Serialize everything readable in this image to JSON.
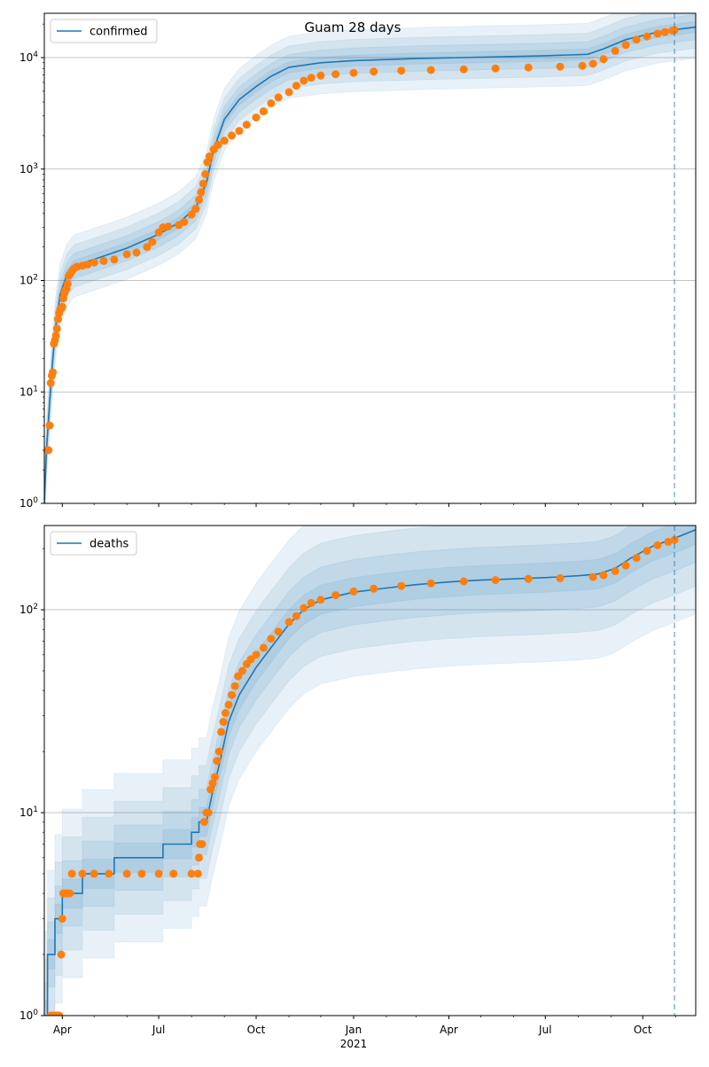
{
  "figure": {
    "suptitle": "Guam 28 days"
  },
  "x_axis": {
    "start": "2020-03-15",
    "end": "2021-11-20",
    "forecast_date": "2021-10-31",
    "tick_labels": [
      {
        "date": "2020-04-01",
        "label": "Apr"
      },
      {
        "date": "2020-07-01",
        "label": "Jul"
      },
      {
        "date": "2020-10-01",
        "label": "Oct"
      },
      {
        "date": "2021-01-01",
        "label": "Jan"
      },
      {
        "date": "2021-04-01",
        "label": "Apr"
      },
      {
        "date": "2021-07-01",
        "label": "Jul"
      },
      {
        "date": "2021-10-01",
        "label": "Oct"
      }
    ],
    "year_label": {
      "date": "2021-01-01",
      "label": "2021"
    }
  },
  "colors": {
    "line": "#1f77b4",
    "observed": "#ff7f0e",
    "band": "#1f77b4",
    "grid": "#b0b0b0"
  },
  "chart_data": [
    {
      "type": "line",
      "yscale": "log",
      "ylim": [
        1,
        25000
      ],
      "y_tick_labels": [
        "10^0",
        "10^1",
        "10^2",
        "10^3",
        "10^4"
      ],
      "grid": true,
      "legend_position": "top-left",
      "series": [
        {
          "name": "confirmed",
          "kind": "model",
          "points": [
            [
              "2020-03-15",
              1
            ],
            [
              "2020-03-17",
              3
            ],
            [
              "2020-03-20",
              8
            ],
            [
              "2020-03-23",
              20
            ],
            [
              "2020-03-26",
              40
            ],
            [
              "2020-03-30",
              75
            ],
            [
              "2020-04-05",
              110
            ],
            [
              "2020-04-12",
              135
            ],
            [
              "2020-05-01",
              155
            ],
            [
              "2020-06-01",
              195
            ],
            [
              "2020-07-01",
              260
            ],
            [
              "2020-07-20",
              330
            ],
            [
              "2020-08-05",
              450
            ],
            [
              "2020-08-15",
              750
            ],
            [
              "2020-08-22",
              1500
            ],
            [
              "2020-09-01",
              2800
            ],
            [
              "2020-09-15",
              4200
            ],
            [
              "2020-10-01",
              5500
            ],
            [
              "2020-10-15",
              6800
            ],
            [
              "2020-11-01",
              8200
            ],
            [
              "2020-12-01",
              9000
            ],
            [
              "2021-01-01",
              9400
            ],
            [
              "2021-03-01",
              9800
            ],
            [
              "2021-05-01",
              10100
            ],
            [
              "2021-07-01",
              10400
            ],
            [
              "2021-08-10",
              10700
            ],
            [
              "2021-08-25",
              12000
            ],
            [
              "2021-09-15",
              14500
            ],
            [
              "2021-10-15",
              17000
            ],
            [
              "2021-10-31",
              17800
            ],
            [
              "2021-11-20",
              18800
            ]
          ]
        },
        {
          "name": "",
          "kind": "observed",
          "points": [
            [
              "2020-03-18",
              3
            ],
            [
              "2020-03-19",
              3
            ],
            [
              "2020-03-20",
              5
            ],
            [
              "2020-03-21",
              12
            ],
            [
              "2020-03-22",
              14
            ],
            [
              "2020-03-23",
              15
            ],
            [
              "2020-03-24",
              27
            ],
            [
              "2020-03-25",
              29
            ],
            [
              "2020-03-26",
              32
            ],
            [
              "2020-03-27",
              37
            ],
            [
              "2020-03-28",
              45
            ],
            [
              "2020-03-29",
              51
            ],
            [
              "2020-03-30",
              55
            ],
            [
              "2020-03-31",
              56
            ],
            [
              "2020-04-01",
              58
            ],
            [
              "2020-04-02",
              69
            ],
            [
              "2020-04-03",
              77
            ],
            [
              "2020-04-04",
              82
            ],
            [
              "2020-04-05",
              84
            ],
            [
              "2020-04-06",
              93
            ],
            [
              "2020-04-07",
              110
            ],
            [
              "2020-04-08",
              113
            ],
            [
              "2020-04-10",
              121
            ],
            [
              "2020-04-12",
              128
            ],
            [
              "2020-04-15",
              133
            ],
            [
              "2020-04-20",
              136
            ],
            [
              "2020-04-25",
              139
            ],
            [
              "2020-05-01",
              145
            ],
            [
              "2020-05-10",
              150
            ],
            [
              "2020-05-20",
              154
            ],
            [
              "2020-06-01",
              172
            ],
            [
              "2020-06-10",
              178
            ],
            [
              "2020-06-20",
              200
            ],
            [
              "2020-06-25",
              222
            ],
            [
              "2020-07-01",
              270
            ],
            [
              "2020-07-05",
              300
            ],
            [
              "2020-07-10",
              305
            ],
            [
              "2020-07-20",
              315
            ],
            [
              "2020-07-25",
              335
            ],
            [
              "2020-08-01",
              390
            ],
            [
              "2020-08-05",
              440
            ],
            [
              "2020-08-08",
              530
            ],
            [
              "2020-08-10",
              620
            ],
            [
              "2020-08-12",
              740
            ],
            [
              "2020-08-14",
              900
            ],
            [
              "2020-08-16",
              1150
            ],
            [
              "2020-08-18",
              1300
            ],
            [
              "2020-08-22",
              1500
            ],
            [
              "2020-08-26",
              1650
            ],
            [
              "2020-09-01",
              1800
            ],
            [
              "2020-09-08",
              2000
            ],
            [
              "2020-09-15",
              2200
            ],
            [
              "2020-09-22",
              2500
            ],
            [
              "2020-10-01",
              2900
            ],
            [
              "2020-10-08",
              3300
            ],
            [
              "2020-10-15",
              3900
            ],
            [
              "2020-10-22",
              4400
            ],
            [
              "2020-11-01",
              4900
            ],
            [
              "2020-11-08",
              5600
            ],
            [
              "2020-11-15",
              6200
            ],
            [
              "2020-11-22",
              6600
            ],
            [
              "2020-12-01",
              6900
            ],
            [
              "2020-12-15",
              7100
            ],
            [
              "2021-01-01",
              7300
            ],
            [
              "2021-01-20",
              7500
            ],
            [
              "2021-02-15",
              7650
            ],
            [
              "2021-03-15",
              7750
            ],
            [
              "2021-04-15",
              7850
            ],
            [
              "2021-05-15",
              8000
            ],
            [
              "2021-06-15",
              8150
            ],
            [
              "2021-07-15",
              8300
            ],
            [
              "2021-08-05",
              8450
            ],
            [
              "2021-08-15",
              8800
            ],
            [
              "2021-08-25",
              9700
            ],
            [
              "2021-09-05",
              11500
            ],
            [
              "2021-09-15",
              13000
            ],
            [
              "2021-09-25",
              14500
            ],
            [
              "2021-10-05",
              15500
            ],
            [
              "2021-10-15",
              16400
            ],
            [
              "2021-10-22",
              17000
            ],
            [
              "2021-10-29",
              17500
            ],
            [
              "2021-10-31",
              17700
            ]
          ]
        }
      ]
    },
    {
      "type": "line",
      "yscale": "log",
      "ylim": [
        1,
        260
      ],
      "y_tick_labels": [
        "10^0",
        "10^1",
        "10^2"
      ],
      "grid": true,
      "legend_position": "top-left",
      "series": [
        {
          "name": "deaths",
          "kind": "model",
          "step": true,
          "points": [
            [
              "2020-03-15",
              1
            ],
            [
              "2020-03-18",
              1
            ],
            [
              "2020-03-18",
              2
            ],
            [
              "2020-03-25",
              2
            ],
            [
              "2020-03-25",
              3
            ],
            [
              "2020-04-01",
              3
            ],
            [
              "2020-04-01",
              4
            ],
            [
              "2020-04-20",
              4
            ],
            [
              "2020-04-20",
              5
            ],
            [
              "2020-05-20",
              5
            ],
            [
              "2020-05-20",
              6
            ],
            [
              "2020-07-05",
              6
            ],
            [
              "2020-07-05",
              7
            ],
            [
              "2020-08-01",
              7
            ],
            [
              "2020-08-01",
              8
            ],
            [
              "2020-08-08",
              8
            ],
            [
              "2020-08-08",
              9
            ],
            [
              "2020-08-15",
              9
            ],
            [
              "2020-08-20",
              12
            ],
            [
              "2020-08-28",
              18
            ],
            [
              "2020-09-05",
              28
            ],
            [
              "2020-09-15",
              38
            ],
            [
              "2020-10-01",
              52
            ],
            [
              "2020-10-15",
              65
            ],
            [
              "2020-11-01",
              85
            ],
            [
              "2020-11-15",
              100
            ],
            [
              "2020-12-01",
              112
            ],
            [
              "2021-01-01",
              122
            ],
            [
              "2021-02-01",
              128
            ],
            [
              "2021-03-01",
              133
            ],
            [
              "2021-04-01",
              137
            ],
            [
              "2021-05-01",
              140
            ],
            [
              "2021-06-01",
              142
            ],
            [
              "2021-07-01",
              144
            ],
            [
              "2021-08-01",
              147
            ],
            [
              "2021-08-20",
              150
            ],
            [
              "2021-09-05",
              160
            ],
            [
              "2021-09-20",
              180
            ],
            [
              "2021-10-10",
              205
            ],
            [
              "2021-10-31",
              225
            ],
            [
              "2021-11-20",
              248
            ]
          ]
        },
        {
          "name": "",
          "kind": "observed",
          "points": [
            [
              "2020-03-21",
              1
            ],
            [
              "2020-03-23",
              1
            ],
            [
              "2020-03-25",
              1
            ],
            [
              "2020-03-27",
              1
            ],
            [
              "2020-03-29",
              1
            ],
            [
              "2020-03-31",
              2
            ],
            [
              "2020-04-01",
              3
            ],
            [
              "2020-04-02",
              4
            ],
            [
              "2020-04-04",
              4
            ],
            [
              "2020-04-06",
              4
            ],
            [
              "2020-04-08",
              4
            ],
            [
              "2020-04-10",
              5
            ],
            [
              "2020-04-20",
              5
            ],
            [
              "2020-05-01",
              5
            ],
            [
              "2020-05-15",
              5
            ],
            [
              "2020-06-01",
              5
            ],
            [
              "2020-06-15",
              5
            ],
            [
              "2020-07-01",
              5
            ],
            [
              "2020-07-15",
              5
            ],
            [
              "2020-08-01",
              5
            ],
            [
              "2020-08-07",
              5
            ],
            [
              "2020-08-08",
              6
            ],
            [
              "2020-08-09",
              7
            ],
            [
              "2020-08-11",
              7
            ],
            [
              "2020-08-13",
              9
            ],
            [
              "2020-08-15",
              10
            ],
            [
              "2020-08-17",
              10
            ],
            [
              "2020-08-19",
              13
            ],
            [
              "2020-08-21",
              14
            ],
            [
              "2020-08-23",
              15
            ],
            [
              "2020-08-25",
              18
            ],
            [
              "2020-08-27",
              20
            ],
            [
              "2020-08-29",
              25
            ],
            [
              "2020-08-31",
              28
            ],
            [
              "2020-09-02",
              31
            ],
            [
              "2020-09-05",
              34
            ],
            [
              "2020-09-08",
              38
            ],
            [
              "2020-09-11",
              42
            ],
            [
              "2020-09-14",
              47
            ],
            [
              "2020-09-18",
              50
            ],
            [
              "2020-09-22",
              54
            ],
            [
              "2020-09-26",
              57
            ],
            [
              "2020-10-01",
              60
            ],
            [
              "2020-10-08",
              65
            ],
            [
              "2020-10-15",
              72
            ],
            [
              "2020-10-22",
              78
            ],
            [
              "2020-11-01",
              87
            ],
            [
              "2020-11-08",
              93
            ],
            [
              "2020-11-15",
              102
            ],
            [
              "2020-11-22",
              108
            ],
            [
              "2020-12-01",
              112
            ],
            [
              "2020-12-15",
              118
            ],
            [
              "2021-01-01",
              123
            ],
            [
              "2021-01-20",
              127
            ],
            [
              "2021-02-15",
              131
            ],
            [
              "2021-03-15",
              135
            ],
            [
              "2021-04-15",
              138
            ],
            [
              "2021-05-15",
              140
            ],
            [
              "2021-06-15",
              142
            ],
            [
              "2021-07-15",
              143
            ],
            [
              "2021-08-15",
              145
            ],
            [
              "2021-08-25",
              148
            ],
            [
              "2021-09-05",
              155
            ],
            [
              "2021-09-15",
              165
            ],
            [
              "2021-09-25",
              180
            ],
            [
              "2021-10-05",
              195
            ],
            [
              "2021-10-15",
              208
            ],
            [
              "2021-10-25",
              216
            ],
            [
              "2021-10-31",
              221
            ]
          ]
        }
      ]
    }
  ]
}
